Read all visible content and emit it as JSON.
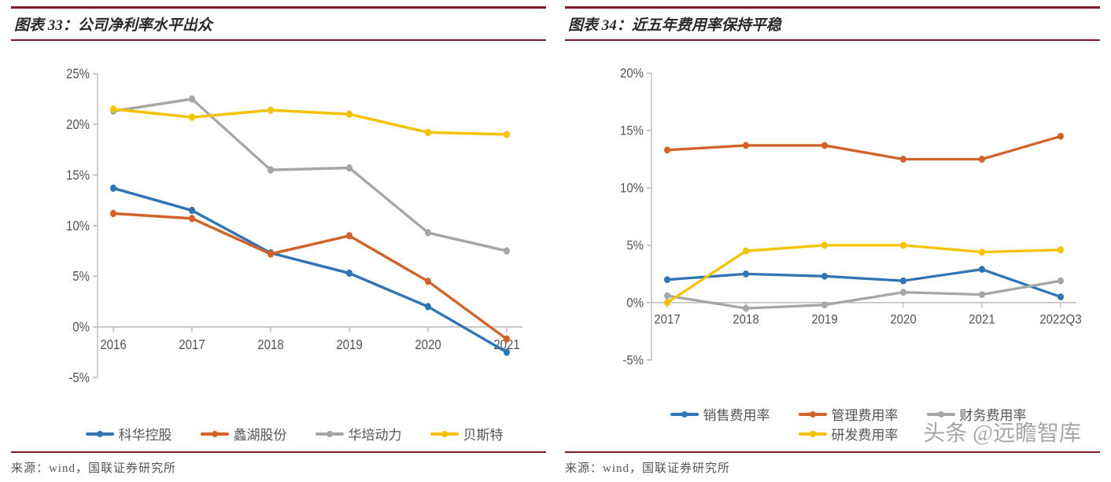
{
  "watermark": "头条 @远瞻智库",
  "left": {
    "title_prefix": "图表 33：",
    "title": "公司净利率水平出众",
    "source": "来源：wind，国联证券研究所",
    "chart": {
      "type": "line",
      "background_color": "#ffffff",
      "x_categories": [
        "2016",
        "2017",
        "2018",
        "2019",
        "2020",
        "2021"
      ],
      "ylim": [
        -5,
        25
      ],
      "ytick_step": 5,
      "y_suffix": "%",
      "line_width": 3,
      "marker_radius": 4,
      "axis_color": "#bfbfbf",
      "label_fontsize": 15,
      "series": [
        {
          "name": "科华控股",
          "color": "#2f74b5",
          "values": [
            13.7,
            11.5,
            7.3,
            5.3,
            2.0,
            -2.5
          ]
        },
        {
          "name": "蠡湖股份",
          "color": "#d1632a",
          "values": [
            11.2,
            10.7,
            7.2,
            9.0,
            4.5,
            -1.2
          ]
        },
        {
          "name": "华培动力",
          "color": "#a6a6a6",
          "values": [
            21.3,
            22.5,
            15.5,
            15.7,
            9.3,
            7.5
          ]
        },
        {
          "name": "贝斯特",
          "color": "#f4c200",
          "values": [
            21.5,
            20.7,
            21.4,
            21.0,
            19.2,
            19.0
          ]
        }
      ]
    }
  },
  "right": {
    "title_prefix": "图表 34：",
    "title": "近五年费用率保持平稳",
    "source": "来源：wind，国联证券研究所",
    "chart": {
      "type": "line",
      "background_color": "#ffffff",
      "x_categories": [
        "2017",
        "2018",
        "2019",
        "2020",
        "2021",
        "2022Q3"
      ],
      "ylim": [
        -5,
        20
      ],
      "ytick_step": 5,
      "y_suffix": "%",
      "line_width": 3,
      "marker_radius": 4,
      "axis_color": "#bfbfbf",
      "label_fontsize": 15,
      "series": [
        {
          "name": "销售费用率",
          "color": "#2f74b5",
          "values": [
            2.0,
            2.5,
            2.3,
            1.9,
            2.9,
            0.5
          ]
        },
        {
          "name": "管理费用率",
          "color": "#d1632a",
          "values": [
            13.3,
            13.7,
            13.7,
            12.5,
            12.5,
            14.5
          ]
        },
        {
          "name": "财务费用率",
          "color": "#a6a6a6",
          "values": [
            0.6,
            -0.5,
            -0.2,
            0.9,
            0.7,
            1.9
          ]
        },
        {
          "name": "研发费用率",
          "color": "#f4c200",
          "values": [
            0.0,
            4.5,
            5.0,
            5.0,
            4.4,
            4.6
          ]
        }
      ]
    }
  }
}
